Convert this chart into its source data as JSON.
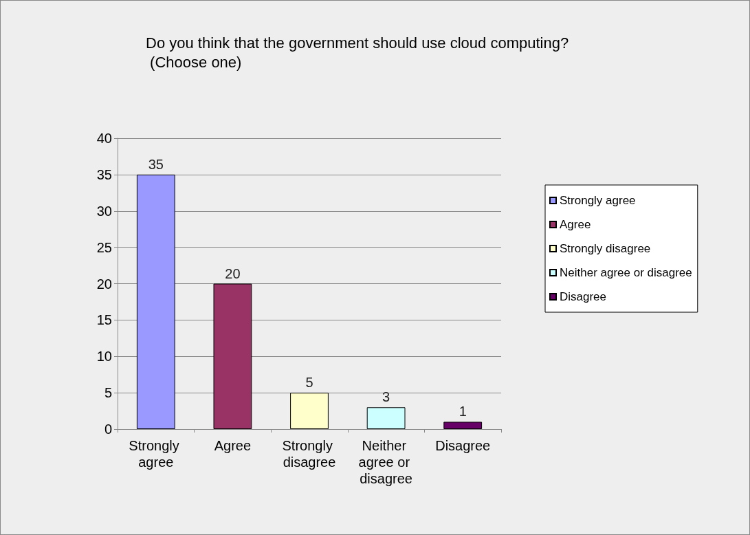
{
  "chart_data": {
    "type": "bar",
    "title": "Do you think that the government should use cloud computing? (Choose one)",
    "categories": [
      "Strongly agree",
      "Agree",
      "Strongly disagree",
      "Neither agree or disagree",
      "Disagree"
    ],
    "series": [
      {
        "name": "Strongly agree",
        "color": "#9999ff",
        "values": [
          35,
          null,
          null,
          null,
          null
        ]
      },
      {
        "name": "Agree",
        "color": "#993366",
        "values": [
          null,
          20,
          null,
          null,
          null
        ]
      },
      {
        "name": "Strongly disagree",
        "color": "#ffffcc",
        "values": [
          null,
          null,
          5,
          null,
          null
        ]
      },
      {
        "name": "Neither agree or disagree",
        "color": "#ccffff",
        "values": [
          null,
          null,
          null,
          3,
          null
        ]
      },
      {
        "name": "Disagree",
        "color": "#660066",
        "values": [
          null,
          null,
          null,
          null,
          1
        ]
      }
    ],
    "ylim": [
      0,
      40
    ],
    "yticks": [
      0,
      5,
      10,
      15,
      20,
      25,
      30,
      35,
      40
    ],
    "grid": "y",
    "legend": "right",
    "data_labels": true
  }
}
